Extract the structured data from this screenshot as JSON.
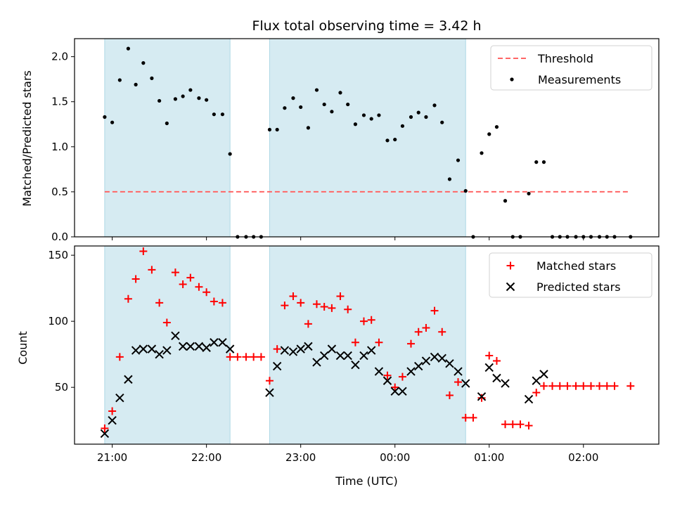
{
  "chart_data": {
    "type": "scatter",
    "title": "Flux total observing time = 3.42 h",
    "xlabel": "Time (UTC)",
    "x_unit": "hours",
    "x_ticks": [
      {
        "value": 21,
        "label": "21:00"
      },
      {
        "value": 22,
        "label": "22:00"
      },
      {
        "value": 23,
        "label": "23:00"
      },
      {
        "value": 24,
        "label": "00:00"
      },
      {
        "value": 25,
        "label": "01:00"
      },
      {
        "value": 26,
        "label": "02:00"
      }
    ],
    "xlim": [
      20.6,
      26.8
    ],
    "shaded_intervals": [
      [
        20.92,
        22.25
      ],
      [
        22.67,
        24.75
      ]
    ],
    "shade_color": "#add8e6",
    "panels": [
      {
        "ylabel": "Matched/Predicted stars",
        "ylim": [
          0,
          2.2
        ],
        "y_ticks": [
          {
            "value": 0,
            "label": "0.0"
          },
          {
            "value": 0.5,
            "label": "0.5"
          },
          {
            "value": 1.0,
            "label": "1.0"
          },
          {
            "value": 1.5,
            "label": "1.5"
          },
          {
            "value": 2.0,
            "label": "2.0"
          }
        ],
        "legend": [
          "Threshold",
          "Measurements"
        ],
        "legend_position": "upper right",
        "threshold": {
          "name": "Threshold",
          "y": 0.5,
          "x_range": [
            20.92,
            26.5
          ],
          "color": "#ff6666",
          "style": "dashed"
        },
        "series": [
          {
            "name": "Measurements",
            "marker": "dot",
            "color": "#000000",
            "x": [
              20.92,
              21.0,
              21.08,
              21.17,
              21.25,
              21.33,
              21.42,
              21.5,
              21.58,
              21.67,
              21.75,
              21.83,
              21.92,
              22.0,
              22.08,
              22.17,
              22.25,
              22.33,
              22.42,
              22.5,
              22.58,
              22.67,
              22.75,
              22.83,
              22.92,
              23.0,
              23.08,
              23.17,
              23.25,
              23.33,
              23.42,
              23.5,
              23.58,
              23.67,
              23.75,
              23.83,
              23.92,
              24.0,
              24.08,
              24.17,
              24.25,
              24.33,
              24.42,
              24.5,
              24.58,
              24.67,
              24.75,
              24.83,
              24.92,
              25.0,
              25.08,
              25.17,
              25.25,
              25.33,
              25.42,
              25.5,
              25.58,
              25.67,
              25.75,
              25.83,
              25.92,
              26.0,
              26.08,
              26.17,
              26.25,
              26.33,
              26.5
            ],
            "y": [
              1.33,
              1.27,
              1.74,
              2.09,
              1.69,
              1.93,
              1.76,
              1.51,
              1.26,
              1.53,
              1.56,
              1.63,
              1.54,
              1.52,
              1.36,
              1.36,
              0.92,
              0.0,
              0.0,
              0.0,
              0.0,
              1.19,
              1.19,
              1.43,
              1.54,
              1.44,
              1.21,
              1.63,
              1.47,
              1.39,
              1.6,
              1.47,
              1.25,
              1.35,
              1.31,
              1.35,
              1.07,
              1.08,
              1.23,
              1.33,
              1.38,
              1.33,
              1.46,
              1.27,
              0.64,
              0.85,
              0.51,
              0.0,
              0.93,
              1.14,
              1.22,
              0.4,
              0.0,
              0.0,
              0.48,
              0.83,
              0.83,
              0.0,
              0.0,
              0.0,
              0.0,
              0.0,
              0.0,
              0.0,
              0.0,
              0.0,
              0.0
            ]
          }
        ]
      },
      {
        "ylabel": "Count",
        "ylim": [
          7,
          157
        ],
        "y_ticks": [
          {
            "value": 50,
            "label": "50"
          },
          {
            "value": 100,
            "label": "100"
          },
          {
            "value": 150,
            "label": "150"
          }
        ],
        "legend": [
          "Matched stars",
          "Predicted stars"
        ],
        "legend_position": "upper right",
        "series": [
          {
            "name": "Matched stars",
            "marker": "plus",
            "color": "#ff0000",
            "x": [
              20.92,
              21.0,
              21.08,
              21.17,
              21.25,
              21.33,
              21.42,
              21.5,
              21.58,
              21.67,
              21.75,
              21.83,
              21.92,
              22.0,
              22.08,
              22.17,
              22.25,
              22.33,
              22.42,
              22.5,
              22.58,
              22.67,
              22.75,
              22.83,
              22.92,
              23.0,
              23.08,
              23.17,
              23.25,
              23.33,
              23.42,
              23.5,
              23.58,
              23.67,
              23.75,
              23.83,
              23.92,
              24.0,
              24.08,
              24.17,
              24.25,
              24.33,
              24.42,
              24.5,
              24.58,
              24.67,
              24.75,
              24.83,
              24.92,
              25.0,
              25.08,
              25.17,
              25.25,
              25.33,
              25.42,
              25.5,
              25.58,
              25.67,
              25.75,
              25.83,
              25.92,
              26.0,
              26.08,
              26.17,
              26.25,
              26.33,
              26.5
            ],
            "y": [
              19,
              32,
              73,
              117,
              132,
              153,
              139,
              114,
              99,
              137,
              128,
              133,
              126,
              122,
              115,
              114,
              73,
              73,
              73,
              73,
              73,
              55,
              79,
              112,
              119,
              114,
              98,
              113,
              111,
              110,
              119,
              109,
              84,
              100,
              101,
              84,
              59,
              50,
              58,
              83,
              92,
              95,
              108,
              92,
              44,
              54,
              27,
              27,
              42,
              74,
              70,
              22,
              22,
              22,
              21,
              46,
              51,
              51,
              51,
              51,
              51,
              51,
              51,
              51,
              51,
              51,
              51
            ]
          },
          {
            "name": "Predicted stars",
            "marker": "x",
            "color": "#000000",
            "x": [
              20.92,
              21.0,
              21.08,
              21.17,
              21.25,
              21.33,
              21.42,
              21.5,
              21.58,
              21.67,
              21.75,
              21.83,
              21.92,
              22.0,
              22.08,
              22.17,
              22.25,
              22.67,
              22.75,
              22.83,
              22.92,
              23.0,
              23.08,
              23.17,
              23.25,
              23.33,
              23.42,
              23.5,
              23.58,
              23.67,
              23.75,
              23.83,
              23.92,
              24.0,
              24.08,
              24.17,
              24.25,
              24.33,
              24.42,
              24.5,
              24.58,
              24.67,
              24.75,
              24.92,
              25.0,
              25.08,
              25.17,
              25.42,
              25.5,
              25.58
            ],
            "y": [
              15,
              25,
              42,
              56,
              78,
              79,
              79,
              75,
              78,
              89,
              81,
              81,
              81,
              80,
              84,
              84,
              79,
              46,
              66,
              78,
              77,
              79,
              81,
              69,
              74,
              79,
              74,
              74,
              67,
              74,
              78,
              62,
              55,
              47,
              47,
              62,
              66,
              70,
              73,
              72,
              68,
              62,
              53,
              43,
              65,
              57,
              53,
              41,
              55,
              60
            ]
          }
        ]
      }
    ]
  }
}
